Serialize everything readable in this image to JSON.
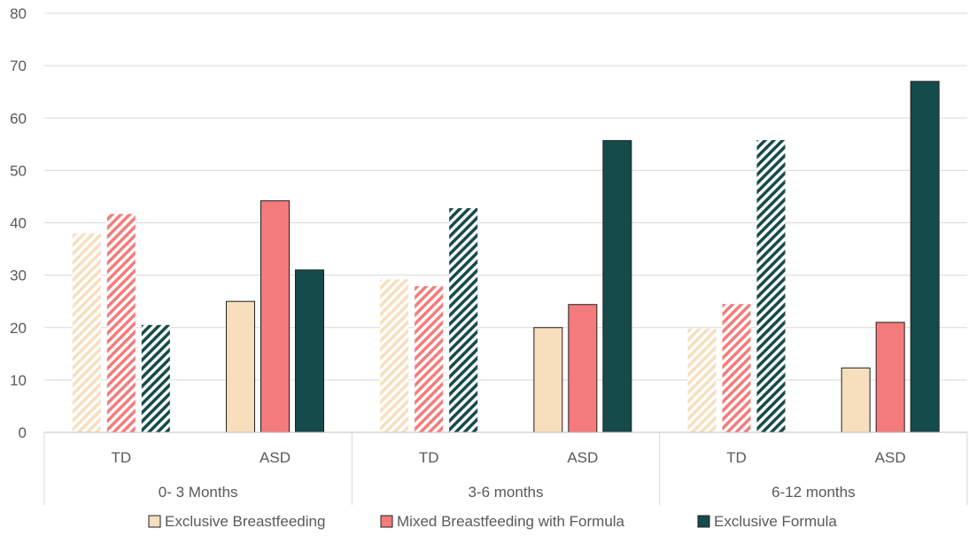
{
  "chart_data": {
    "type": "bar",
    "ylim": [
      0,
      80
    ],
    "yticks": [
      0,
      10,
      20,
      30,
      40,
      50,
      60,
      70,
      80
    ],
    "grid": true,
    "legend_position": "bottom",
    "groups": [
      "0- 3 Months",
      "3-6 months",
      "6-12 months"
    ],
    "subgroups": [
      "TD",
      "ASD"
    ],
    "categories": [
      "TD",
      "ASD",
      "TD",
      "ASD",
      "TD",
      "ASD"
    ],
    "series": [
      {
        "name": "Exclusive Breastfeeding",
        "color": "#f7dfbe",
        "values": [
          38,
          25,
          29.2,
          20,
          19.8,
          12.3
        ]
      },
      {
        "name": "Mixed Breastfeeding with Formula",
        "color": "#f47b7b",
        "values": [
          41.7,
          44.2,
          27.9,
          24.4,
          24.5,
          21
        ]
      },
      {
        "name": "Exclusive Formula",
        "color": "#154b4a",
        "values": [
          20.5,
          31,
          42.8,
          55.7,
          55.8,
          67
        ]
      }
    ],
    "style_note": "TD bars are hatched, ASD bars are solid with dark outline"
  }
}
